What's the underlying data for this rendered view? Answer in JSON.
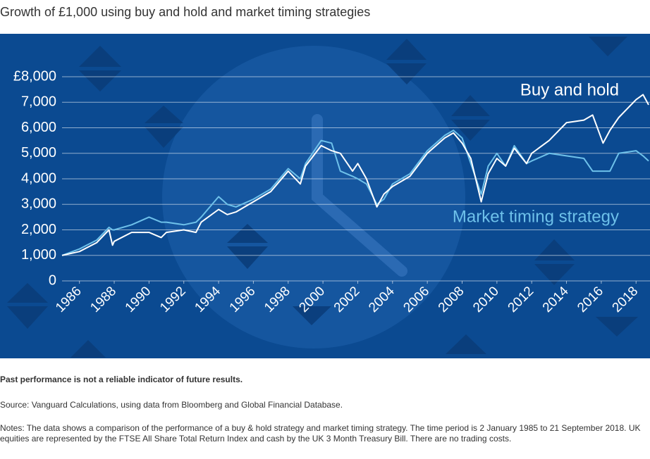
{
  "chart_data": {
    "type": "line",
    "title": "Growth of £1,000 using buy and hold and market timing strategies",
    "x": [
      1985,
      1986,
      1987,
      1987.7,
      1987.9,
      1988,
      1989,
      1990,
      1990.7,
      1991,
      1992,
      1992.7,
      1993,
      1994,
      1994.5,
      1995,
      1996,
      1997,
      1998,
      1998.7,
      1999,
      1999.9,
      2000.5,
      2001,
      2001.7,
      2002,
      2002.5,
      2003.1,
      2003.5,
      2004,
      2005,
      2006,
      2007,
      2007.5,
      2008,
      2008.5,
      2009.1,
      2009.5,
      2010,
      2010.5,
      2011,
      2011.7,
      2012,
      2013,
      2014,
      2015,
      2015.5,
      2016.1,
      2016.5,
      2017,
      2018,
      2018.4,
      2018.72
    ],
    "series": [
      {
        "name": "Buy and hold",
        "color": "#ffffff",
        "values": [
          1000,
          1150,
          1500,
          2000,
          1400,
          1550,
          1900,
          1900,
          1700,
          1900,
          2000,
          1900,
          2300,
          2800,
          2600,
          2700,
          3100,
          3500,
          4300,
          3800,
          4500,
          5300,
          5100,
          5000,
          4300,
          4600,
          4000,
          2900,
          3400,
          3700,
          4100,
          5000,
          5600,
          5800,
          5400,
          4800,
          3100,
          4200,
          4800,
          4500,
          5200,
          4600,
          5000,
          5500,
          6200,
          6300,
          6500,
          5400,
          5900,
          6400,
          7100,
          7300,
          6900
        ]
      },
      {
        "name": "Market timing strategy",
        "color": "#6ec1ea",
        "values": [
          1000,
          1250,
          1600,
          2100,
          2000,
          2000,
          2200,
          2500,
          2300,
          2300,
          2200,
          2300,
          2500,
          3300,
          3000,
          2900,
          3200,
          3600,
          4400,
          4000,
          4600,
          5500,
          5400,
          4300,
          4100,
          4000,
          3800,
          3000,
          3200,
          3800,
          4200,
          5100,
          5700,
          5900,
          5600,
          4600,
          3400,
          4500,
          5000,
          4500,
          5300,
          4600,
          4700,
          5000,
          4900,
          4800,
          4300,
          4300,
          4300,
          5000,
          5100,
          4900,
          4700
        ]
      }
    ],
    "xlim": [
      1985,
      2018.72
    ],
    "xticks": [
      1986,
      1988,
      1990,
      1992,
      1994,
      1996,
      1998,
      2000,
      2002,
      2004,
      2006,
      2008,
      2010,
      2012,
      2014,
      2016,
      2018
    ],
    "ylim": [
      0,
      8000
    ],
    "yticks": [
      0,
      {
        "value": 1000,
        "label": "1,000"
      },
      {
        "value": 2000,
        "label": "2,000"
      },
      {
        "value": 3000,
        "label": "3,000"
      },
      {
        "value": 4000,
        "label": "4,000"
      },
      {
        "value": 5000,
        "label": "5,000"
      },
      {
        "value": 6000,
        "label": "6,000"
      },
      {
        "value": 7000,
        "label": "7,000"
      },
      {
        "value": 8000,
        "label": "£8,000"
      }
    ],
    "grid": true
  },
  "disclaimer": "Past performance is not a reliable indicator of future results.",
  "source": "Source: Vanguard Calculations, using data from Bloomberg and Global Financial Database.",
  "notes": "Notes: The data shows a comparison of the performance of a buy & hold strategy and market timing strategy. The time period is 2 January 1985 to 21 September 2018. UK equities are represented by the FTSE All Share Total Return Index and cash by the UK 3 Month Treasury Bill. There are no trading costs."
}
